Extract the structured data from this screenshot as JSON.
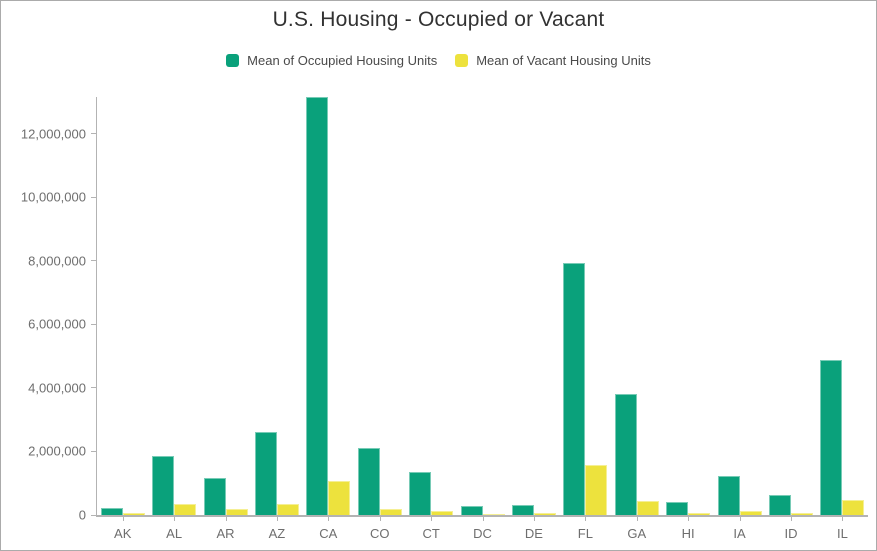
{
  "title": "U.S. Housing - Occupied or Vacant",
  "colors": {
    "occupied": "#0aa17b",
    "vacant": "#ede23d",
    "axis": "#b3b3b3",
    "tick_text": "#6e6e6e",
    "title_text": "#323232",
    "legend_text": "#4a4a4a",
    "card_border": "#ababab",
    "background": "#ffffff"
  },
  "legend": {
    "items": [
      {
        "label": "Mean of Occupied Housing Units",
        "color": "#0aa17b"
      },
      {
        "label": "Mean of Vacant Housing Units",
        "color": "#ede23d"
      }
    ]
  },
  "chart_data": {
    "type": "bar",
    "title": "U.S. Housing - Occupied or Vacant",
    "xlabel": "",
    "ylabel": "",
    "grid": false,
    "legend_position": "top",
    "categories": [
      "AK",
      "AL",
      "AR",
      "AZ",
      "CA",
      "CO",
      "CT",
      "DC",
      "DE",
      "FL",
      "GA",
      "HI",
      "IA",
      "ID",
      "IL"
    ],
    "series": [
      {
        "name": "Mean of Occupied Housing Units",
        "color": "#0aa17b",
        "values": [
          230000,
          1860000,
          1150000,
          2620000,
          13150000,
          2100000,
          1350000,
          270000,
          330000,
          7930000,
          3820000,
          420000,
          1240000,
          620000,
          4870000
        ]
      },
      {
        "name": "Mean of Vacant Housing Units",
        "color": "#ede23d",
        "values": [
          50000,
          355000,
          180000,
          360000,
          1070000,
          200000,
          115000,
          25000,
          55000,
          1575000,
          450000,
          55000,
          115000,
          60000,
          460000
        ]
      }
    ],
    "ylim": [
      0,
      13150000
    ],
    "y_ticks": [
      0,
      2000000,
      4000000,
      6000000,
      8000000,
      10000000,
      12000000
    ],
    "y_tick_labels": [
      "0",
      "2,000,000",
      "4,000,000",
      "6,000,000",
      "8,000,000",
      "10,000,000",
      "12,000,000"
    ]
  }
}
